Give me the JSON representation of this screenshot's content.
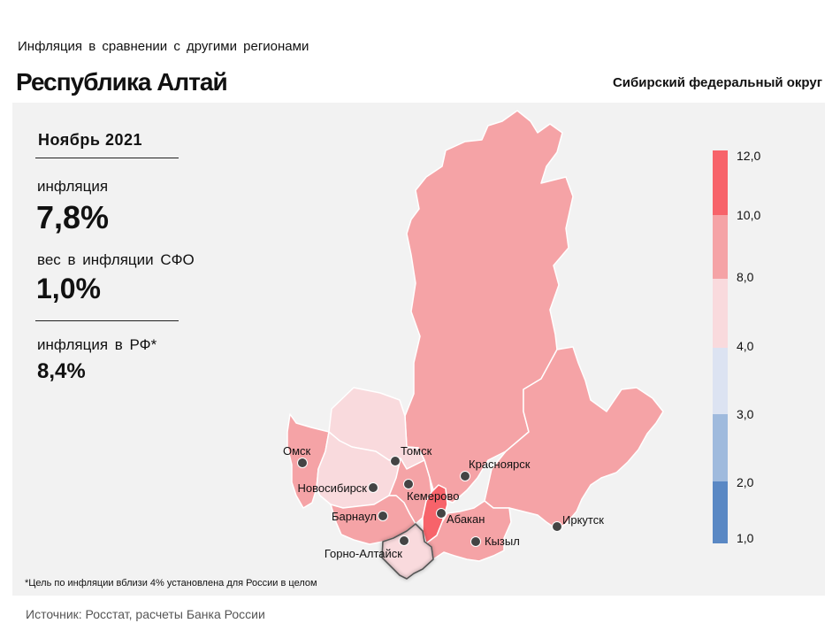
{
  "header": {
    "subtitle": "Инфляция  в сравнении  с другими  регионами",
    "title": "Республика Алтай",
    "district": "Сибирский федеральный округ"
  },
  "stats": {
    "period": "Ноябрь 2021",
    "inflation_label": "инфляция",
    "inflation_value": "7,8%",
    "weight_label": "вес в инфляции  СФО",
    "weight_value": "1,0%",
    "rf_label": "инфляция  в РФ*",
    "rf_value": "8,4%"
  },
  "footnote": "*Цель по инфляции вблизи 4% установлена для России в целом",
  "source": "Источник: Росстат, расчеты Банка России",
  "legend": {
    "ticks": [
      "12,0",
      "10,0",
      "8,0",
      "4,0",
      "3,0",
      "2,0",
      "1,0"
    ],
    "colors": [
      "#f7636a",
      "#f5a3a6",
      "#f9dadd",
      "#dce3f2",
      "#9fbadd",
      "#5a88c4"
    ]
  },
  "map": {
    "colors": {
      "high": "#f7636a",
      "mid": "#f5a3a6",
      "low": "#f9dadd",
      "border": "#ffffff",
      "highlight_border": "#555555",
      "marker": "#444444"
    },
    "regions": [
      {
        "name": "Красноярский край",
        "band": "mid"
      },
      {
        "name": "Иркутская область",
        "band": "mid"
      },
      {
        "name": "Омская область",
        "band": "mid"
      },
      {
        "name": "Томская область",
        "band": "low"
      },
      {
        "name": "Новосибирская область",
        "band": "low"
      },
      {
        "name": "Кемеровская область",
        "band": "mid"
      },
      {
        "name": "Алтайский край",
        "band": "mid"
      },
      {
        "name": "Республика Алтай",
        "band": "low"
      },
      {
        "name": "Республика Хакасия",
        "band": "high"
      },
      {
        "name": "Республика Тыва",
        "band": "mid"
      }
    ],
    "cities": [
      "Омск",
      "Томск",
      "Новосибирск",
      "Кемерово",
      "Красноярск",
      "Барнаул",
      "Абакан",
      "Горно-Алтайск",
      "Кызыл",
      "Иркутск"
    ]
  }
}
